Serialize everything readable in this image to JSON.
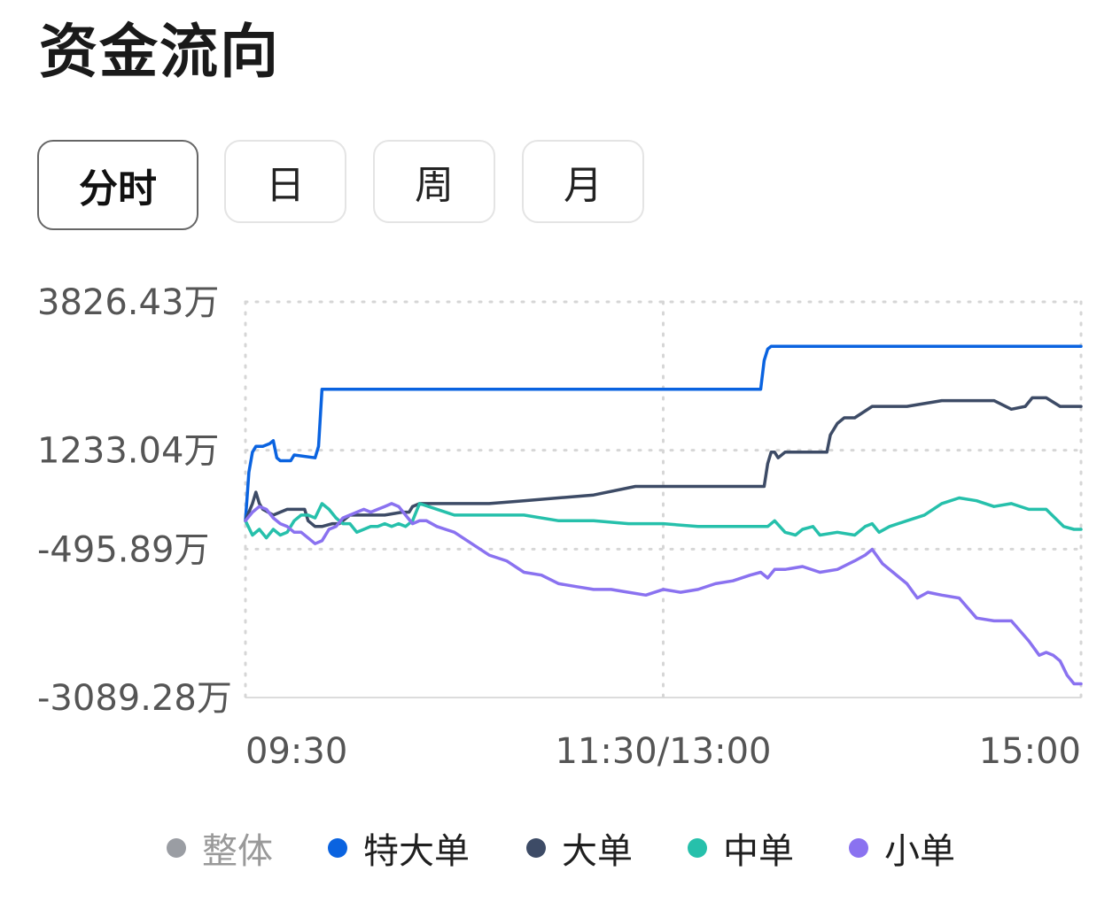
{
  "header": {
    "title": "资金流向"
  },
  "tabs": [
    {
      "label": "分时",
      "active": true
    },
    {
      "label": "日",
      "active": false
    },
    {
      "label": "周",
      "active": false
    },
    {
      "label": "月",
      "active": false
    }
  ],
  "chart_data": {
    "type": "line",
    "title": "",
    "xlabel": "",
    "ylabel": "",
    "y_tick_labels": [
      "3826.43万",
      "1233.04万",
      "-495.89万",
      "-3089.28万"
    ],
    "y_ticks": [
      3826.43,
      1233.04,
      -495.89,
      -3089.28
    ],
    "ylim": [
      -3089.28,
      3826.43
    ],
    "x_tick_labels": [
      "09:30",
      "11:30/13:00",
      "15:00"
    ],
    "x_ticks": [
      0,
      120,
      240
    ],
    "xlim": [
      0,
      240
    ],
    "grid": true,
    "legend_position": "bottom",
    "series": [
      {
        "name": "特大单",
        "color": "#0a63e0",
        "x": [
          0,
          1,
          2,
          3,
          5,
          7,
          8,
          9,
          10,
          13,
          14,
          20,
          21,
          22,
          120,
          148,
          149,
          150,
          151,
          152,
          240
        ],
        "y": [
          0,
          850,
          1200,
          1300,
          1300,
          1350,
          1400,
          1100,
          1050,
          1050,
          1150,
          1100,
          1300,
          2300,
          2300,
          2300,
          2800,
          3000,
          3050,
          3050,
          3050
        ]
      },
      {
        "name": "大单",
        "color": "#3d4b66",
        "x": [
          0,
          2,
          3,
          4,
          5,
          8,
          12,
          17,
          18,
          20,
          22,
          25,
          27,
          28,
          30,
          35,
          40,
          45,
          47,
          48,
          50,
          60,
          70,
          80,
          100,
          112,
          120,
          140,
          149,
          150,
          151,
          152,
          153,
          155,
          160,
          167,
          168,
          170,
          172,
          175,
          180,
          190,
          200,
          205,
          210,
          215,
          220,
          224,
          226,
          230,
          234,
          236,
          240
        ],
        "y": [
          0,
          300,
          500,
          300,
          200,
          100,
          200,
          200,
          0,
          -100,
          -100,
          -50,
          -50,
          0,
          100,
          100,
          100,
          150,
          150,
          250,
          300,
          300,
          300,
          350,
          450,
          600,
          600,
          600,
          600,
          1000,
          1200,
          1200,
          1100,
          1200,
          1200,
          1200,
          1500,
          1700,
          1800,
          1800,
          2000,
          2000,
          2100,
          2100,
          2100,
          2100,
          1950,
          2000,
          2150,
          2150,
          2000,
          2000,
          2000
        ]
      },
      {
        "name": "中单",
        "color": "#26c0ab",
        "x": [
          0,
          2,
          4,
          6,
          8,
          10,
          12,
          14,
          16,
          18,
          20,
          22,
          24,
          26,
          28,
          30,
          32,
          34,
          36,
          38,
          40,
          42,
          44,
          46,
          48,
          50,
          60,
          70,
          80,
          90,
          100,
          110,
          120,
          130,
          140,
          148,
          150,
          152,
          155,
          158,
          160,
          163,
          165,
          170,
          175,
          178,
          180,
          182,
          185,
          190,
          195,
          200,
          205,
          210,
          215,
          220,
          225,
          230,
          235,
          238,
          240
        ],
        "y": [
          0,
          -250,
          -150,
          -300,
          -150,
          -250,
          -200,
          0,
          100,
          100,
          50,
          300,
          200,
          50,
          -50,
          -50,
          -200,
          -150,
          -100,
          -100,
          -50,
          -100,
          -50,
          -100,
          0,
          300,
          100,
          100,
          100,
          0,
          0,
          -50,
          -50,
          -100,
          -100,
          -100,
          -100,
          0,
          -200,
          -250,
          -150,
          -100,
          -250,
          -200,
          -250,
          -100,
          -50,
          -200,
          -100,
          0,
          100,
          300,
          400,
          350,
          250,
          300,
          200,
          200,
          -100,
          -150,
          -150
        ]
      },
      {
        "name": "小单",
        "color": "#8a72f0",
        "x": [
          0,
          2,
          4,
          6,
          8,
          10,
          12,
          14,
          16,
          18,
          20,
          22,
          24,
          26,
          28,
          30,
          32,
          34,
          36,
          38,
          40,
          42,
          44,
          46,
          48,
          50,
          52,
          55,
          60,
          65,
          70,
          75,
          80,
          85,
          90,
          95,
          100,
          105,
          110,
          115,
          120,
          125,
          130,
          135,
          140,
          145,
          148,
          150,
          152,
          155,
          160,
          165,
          170,
          175,
          178,
          180,
          183,
          186,
          190,
          193,
          196,
          200,
          205,
          210,
          215,
          220,
          225,
          228,
          230,
          232,
          234,
          236,
          238,
          240
        ],
        "y": [
          0,
          150,
          250,
          200,
          50,
          -50,
          -100,
          -200,
          -200,
          -300,
          -400,
          -350,
          -150,
          -100,
          50,
          100,
          150,
          200,
          150,
          200,
          250,
          300,
          250,
          100,
          -50,
          0,
          0,
          -100,
          -200,
          -400,
          -600,
          -700,
          -900,
          -950,
          -1100,
          -1150,
          -1200,
          -1200,
          -1250,
          -1300,
          -1200,
          -1250,
          -1200,
          -1100,
          -1050,
          -950,
          -900,
          -1000,
          -850,
          -850,
          -800,
          -900,
          -850,
          -700,
          -600,
          -500,
          -750,
          -900,
          -1100,
          -1350,
          -1250,
          -1300,
          -1350,
          -1700,
          -1750,
          -1750,
          -2100,
          -2350,
          -2300,
          -2350,
          -2450,
          -2700,
          -2850,
          -2850
        ]
      }
    ]
  },
  "legend": [
    {
      "label": "整体",
      "color": "#9a9da3"
    },
    {
      "label": "特大单",
      "color": "#0a63e0"
    },
    {
      "label": "大单",
      "color": "#3d4b66"
    },
    {
      "label": "中单",
      "color": "#26c0ab"
    },
    {
      "label": "小单",
      "color": "#8a72f0"
    }
  ]
}
